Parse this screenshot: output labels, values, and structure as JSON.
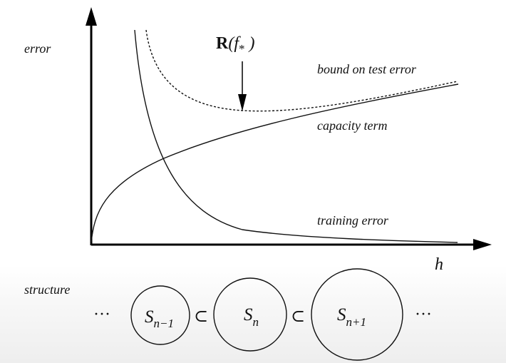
{
  "diagram": {
    "y_axis_label": "error",
    "x_axis_label": "h",
    "risk_label": {
      "bold": "R",
      "func": "(f",
      "subscript": "*",
      "close": " )"
    },
    "curves": {
      "bound": "bound on test error",
      "capacity": "capacity term",
      "training": "training error"
    },
    "structure": {
      "label": "structure",
      "ellipsis": "···",
      "subset_symbol": "⊂",
      "sets": [
        {
          "base": "S",
          "subscript": "n−1"
        },
        {
          "base": "S",
          "subscript": "n"
        },
        {
          "base": "S",
          "subscript": "n+1"
        }
      ]
    }
  }
}
